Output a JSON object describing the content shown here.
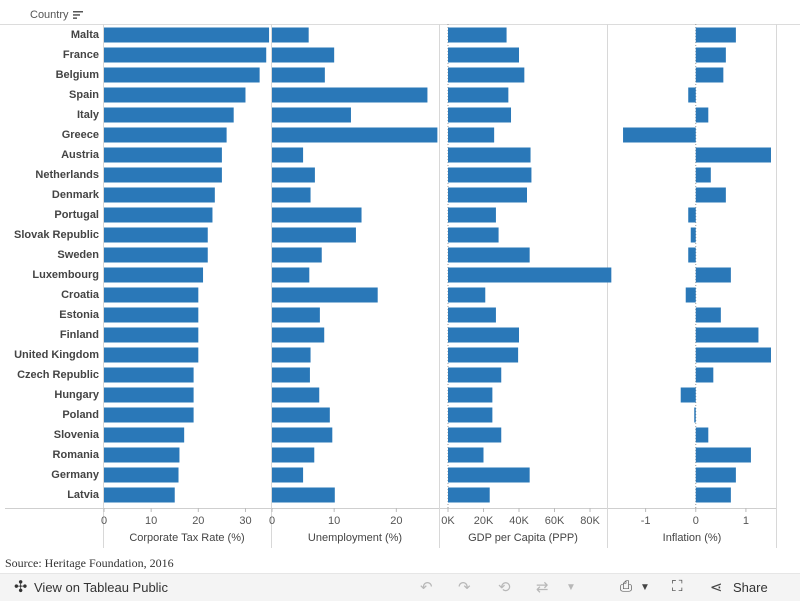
{
  "chart_data": {
    "type": "bar",
    "orientation": "horizontal",
    "row_header": "Country",
    "categories": [
      "Malta",
      "France",
      "Belgium",
      "Spain",
      "Italy",
      "Greece",
      "Austria",
      "Netherlands",
      "Denmark",
      "Portugal",
      "Slovak Republic",
      "Sweden",
      "Luxembourg",
      "Croatia",
      "Estonia",
      "Finland",
      "United Kingdom",
      "Czech Republic",
      "Hungary",
      "Poland",
      "Slovenia",
      "Romania",
      "Germany",
      "Latvia"
    ],
    "panels": [
      {
        "name": "Corporate Tax Rate (%)",
        "color": "#2a78b8",
        "xlim": [
          0,
          35.2
        ],
        "ticks": [
          0,
          10,
          20,
          30
        ],
        "tick_labels": [
          "0",
          "10",
          "20",
          "30"
        ],
        "values": [
          35,
          34.4,
          33,
          30,
          27.5,
          26,
          25,
          25,
          23.5,
          23,
          22,
          22,
          21,
          20,
          20,
          20,
          20,
          19,
          19,
          19,
          17,
          16,
          15.8,
          15
        ]
      },
      {
        "name": "Unemployment (%)",
        "color": "#2a78b8",
        "xlim": [
          0,
          26.7
        ],
        "ticks": [
          0,
          10,
          20
        ],
        "tick_labels": [
          "0",
          "10",
          "20"
        ],
        "values": [
          5.9,
          10,
          8.5,
          25,
          12.7,
          26.6,
          5,
          6.9,
          6.2,
          14.4,
          13.5,
          8,
          6,
          17,
          7.7,
          8.4,
          6.2,
          6.1,
          7.6,
          9.3,
          9.7,
          6.8,
          5,
          10.1
        ]
      },
      {
        "name": "GDP per Capita (PPP)",
        "color": "#2a78b8",
        "xlim": [
          -4500,
          89000
        ],
        "ticks": [
          0,
          20000,
          40000,
          60000,
          80000
        ],
        "tick_labels": [
          "0K",
          "20K",
          "40K",
          "60K",
          "80K"
        ],
        "values": [
          33000,
          40000,
          43000,
          34000,
          35500,
          26000,
          46500,
          47000,
          44500,
          27000,
          28500,
          46000,
          92000,
          21000,
          27000,
          40000,
          39500,
          30000,
          25000,
          25000,
          30000,
          20000,
          46000,
          23500
        ]
      },
      {
        "name": "Inflation (%)",
        "color": "#2a78b8",
        "xlim": [
          -1.75,
          1.6
        ],
        "ticks": [
          -1,
          0,
          1
        ],
        "tick_labels": [
          "-1",
          "0",
          "1"
        ],
        "values": [
          0.8,
          0.6,
          0.55,
          -0.15,
          0.25,
          -1.45,
          1.5,
          0.3,
          0.6,
          -0.15,
          -0.1,
          -0.15,
          0.7,
          -0.2,
          0.5,
          1.25,
          1.5,
          0.35,
          -0.3,
          -0.03,
          0.25,
          1.1,
          0.8,
          0.7
        ]
      }
    ]
  },
  "source": "Source: Heritage Foundation, 2016",
  "toolbar": {
    "view_label": "View on Tableau Public",
    "share_label": "Share"
  },
  "colors": {
    "bar": "#2a78b8",
    "axis": "#cfcfcf",
    "text": "#444444"
  }
}
